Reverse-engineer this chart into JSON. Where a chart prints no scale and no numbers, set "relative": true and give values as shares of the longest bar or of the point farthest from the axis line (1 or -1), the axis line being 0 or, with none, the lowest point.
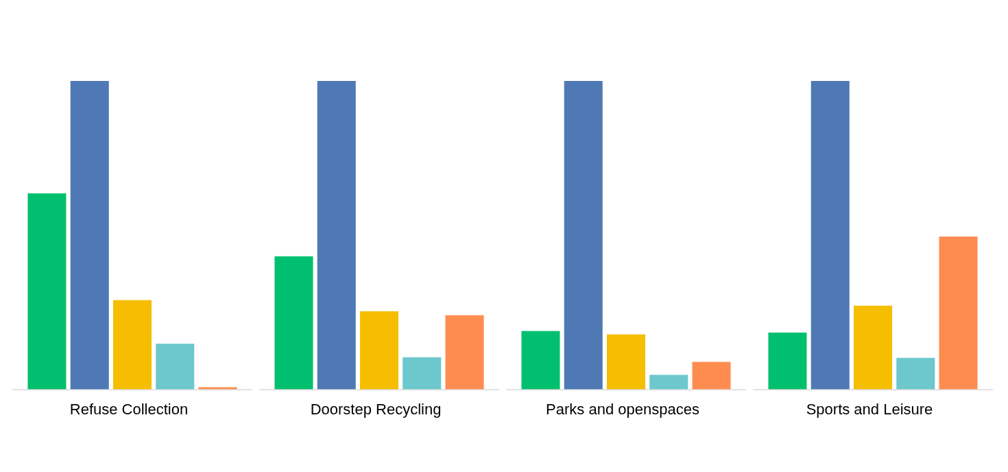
{
  "chart_data": [
    {
      "type": "bar",
      "relative": true,
      "xlabel": "Refuse Collection",
      "categories": [
        null,
        null,
        null,
        null,
        null
      ],
      "values": [
        0.636,
        1,
        0.29,
        0.149,
        0.008
      ],
      "colors": [
        "#00c06f",
        "#4e79b5",
        "#f5be00",
        "#6cc8cc",
        "#ff8c4f"
      ]
    },
    {
      "type": "bar",
      "relative": true,
      "xlabel": "Doorstep Recycling",
      "categories": [
        null,
        null,
        null,
        null,
        null
      ],
      "values": [
        0.432,
        1,
        0.254,
        0.105,
        0.241
      ],
      "colors": [
        "#00c06f",
        "#4e79b5",
        "#f5be00",
        "#6cc8cc",
        "#ff8c4f"
      ]
    },
    {
      "type": "bar",
      "relative": true,
      "xlabel": "Parks and openspaces",
      "categories": [
        null,
        null,
        null,
        null,
        null
      ],
      "values": [
        0.19,
        1,
        0.179,
        0.048,
        0.09
      ],
      "colors": [
        "#00c06f",
        "#4e79b5",
        "#f5be00",
        "#6cc8cc",
        "#ff8c4f"
      ]
    },
    {
      "type": "bar",
      "relative": true,
      "xlabel": "Sports and Leisure",
      "categories": [
        null,
        null,
        null,
        null,
        null
      ],
      "values": [
        0.185,
        1,
        0.272,
        0.103,
        0.496
      ],
      "colors": [
        "#00c06f",
        "#4e79b5",
        "#f5be00",
        "#6cc8cc",
        "#ff8c4f"
      ]
    }
  ]
}
